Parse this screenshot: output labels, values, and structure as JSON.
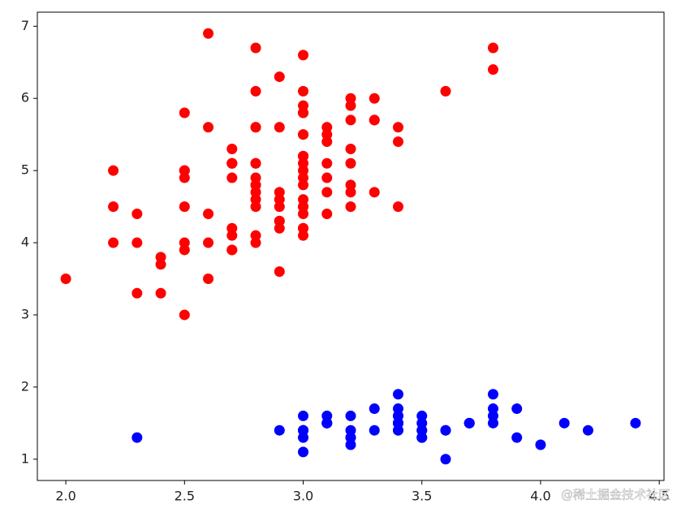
{
  "chart_data": {
    "type": "scatter",
    "watermark": "@稀土掘金技术社区",
    "xlim": [
      1.88,
      4.52
    ],
    "ylim": [
      0.705,
      7.195
    ],
    "xticks": [
      {
        "value": 2,
        "label": "2.0"
      },
      2.5,
      {
        "value": 3,
        "label": "3.0"
      },
      3.5,
      {
        "value": 4,
        "label": "4.0"
      },
      4.5
    ],
    "yticks": [
      1,
      2,
      3,
      4,
      5,
      6,
      7
    ],
    "grid": false,
    "series": [
      {
        "color": "#0000ff",
        "x": [
          3.5,
          3.0,
          3.2,
          3.1,
          3.6,
          3.9,
          3.4,
          3.4,
          2.9,
          3.1,
          3.7,
          3.4,
          3.0,
          3.0,
          4.0,
          4.4,
          3.9,
          3.5,
          3.8,
          3.8,
          3.4,
          3.7,
          3.6,
          3.3,
          3.4,
          3.0,
          3.4,
          3.5,
          3.4,
          3.2,
          3.1,
          3.4,
          4.1,
          4.2,
          3.1,
          3.2,
          3.5,
          3.6,
          3.0,
          3.4,
          3.5,
          2.3,
          3.2,
          3.5,
          3.8,
          3.0,
          3.8,
          3.2,
          3.7,
          3.3
        ],
        "values": [
          1.4,
          1.4,
          1.3,
          1.5,
          1.4,
          1.7,
          1.4,
          1.5,
          1.4,
          1.5,
          1.5,
          1.6,
          1.4,
          1.1,
          1.2,
          1.5,
          1.3,
          1.4,
          1.7,
          1.5,
          1.7,
          1.5,
          1.0,
          1.7,
          1.9,
          1.6,
          1.6,
          1.5,
          1.4,
          1.6,
          1.6,
          1.5,
          1.5,
          1.4,
          1.5,
          1.2,
          1.3,
          1.4,
          1.3,
          1.5,
          1.3,
          1.3,
          1.3,
          1.6,
          1.9,
          1.4,
          1.6,
          1.4,
          1.5,
          1.4
        ]
      },
      {
        "color": "#ff0000",
        "x": [
          3.2,
          3.2,
          3.1,
          2.3,
          2.8,
          2.8,
          3.3,
          2.4,
          2.9,
          2.7,
          2.0,
          3.0,
          2.2,
          2.9,
          2.9,
          3.1,
          3.0,
          2.7,
          2.2,
          2.5,
          3.2,
          2.8,
          2.5,
          2.8,
          2.9,
          3.0,
          2.8,
          3.0,
          2.9,
          2.6,
          2.4,
          2.4,
          2.7,
          2.7,
          3.0,
          3.4,
          3.1,
          2.3,
          3.0,
          2.5,
          2.6,
          3.0,
          2.6,
          2.3,
          2.7,
          3.0,
          2.9,
          2.9,
          2.5,
          2.8,
          3.3,
          2.7,
          3.0,
          2.9,
          3.0,
          3.0,
          2.5,
          2.9,
          2.5,
          3.6,
          3.2,
          2.7,
          3.0,
          2.5,
          2.8,
          3.2,
          3.0,
          3.8,
          2.6,
          2.2,
          3.2,
          2.8,
          2.8,
          2.7,
          3.3,
          3.2,
          2.8,
          3.0,
          2.8,
          3.0,
          2.8,
          3.8,
          2.8,
          2.8,
          2.6,
          3.0,
          3.4,
          3.1,
          3.0,
          3.1,
          3.1,
          3.1,
          2.7,
          3.2,
          3.3,
          3.0,
          2.5,
          3.0,
          3.4,
          3.0
        ],
        "values": [
          4.7,
          4.5,
          4.9,
          4.0,
          4.6,
          4.5,
          4.7,
          3.3,
          4.6,
          3.9,
          3.5,
          4.2,
          4.0,
          4.7,
          3.6,
          4.4,
          4.5,
          4.1,
          4.5,
          3.9,
          4.8,
          4.0,
          4.9,
          4.7,
          4.3,
          4.4,
          4.8,
          5.0,
          4.5,
          3.5,
          3.8,
          3.7,
          3.9,
          5.1,
          4.5,
          4.5,
          4.7,
          4.4,
          4.1,
          4.0,
          4.4,
          4.6,
          4.0,
          3.3,
          4.2,
          4.2,
          4.2,
          4.3,
          3.0,
          4.1,
          6.0,
          5.1,
          5.9,
          5.6,
          5.8,
          6.6,
          4.5,
          6.3,
          5.8,
          6.1,
          5.1,
          5.3,
          5.5,
          5.0,
          5.1,
          5.3,
          5.5,
          6.7,
          6.9,
          5.0,
          5.7,
          4.9,
          6.7,
          4.9,
          5.7,
          6.0,
          4.8,
          4.9,
          5.6,
          5.8,
          6.1,
          6.4,
          5.6,
          5.1,
          5.6,
          6.1,
          5.6,
          5.5,
          4.8,
          5.4,
          5.6,
          5.1,
          5.1,
          5.9,
          5.7,
          5.2,
          5.0,
          5.2,
          5.4,
          5.1
        ]
      }
    ]
  }
}
